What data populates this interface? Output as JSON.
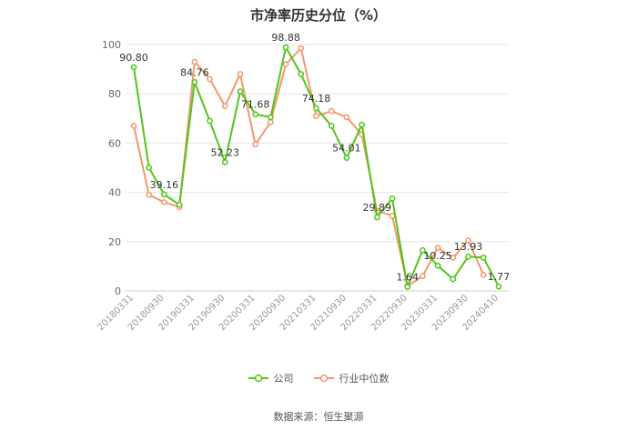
{
  "chart_data": {
    "type": "line",
    "title": "市净率历史分位（%）",
    "xlabel": "",
    "ylabel": "",
    "ylim": [
      0,
      100
    ],
    "yticks": [
      0,
      20,
      40,
      60,
      80,
      100
    ],
    "grid": true,
    "legend_position": "bottom",
    "x": [
      "20180331",
      "20180630",
      "20180930",
      "20181231",
      "20190331",
      "20190630",
      "20190930",
      "20191231",
      "20200331",
      "20200630",
      "20200930",
      "20201231",
      "20210331",
      "20210630",
      "20210930",
      "20211231",
      "20220331",
      "20220630",
      "20220930",
      "20221231",
      "20230331",
      "20230630",
      "20230930",
      "20231231",
      "20240410"
    ],
    "xtick_labels": [
      "20180331",
      "20180930",
      "20190331",
      "20190930",
      "20200331",
      "20200930",
      "20210331",
      "20210930",
      "20220331",
      "20220930",
      "20230331",
      "20230930",
      "20240410"
    ],
    "series": [
      {
        "name": "公司",
        "color": "#52c41a",
        "values": [
          90.8,
          50,
          39.16,
          35,
          84.76,
          69,
          52.23,
          81,
          71.68,
          70.5,
          98.88,
          88,
          74.18,
          67,
          54.01,
          67.5,
          29.89,
          37.5,
          1.64,
          16.5,
          10.25,
          4.8,
          13.93,
          13.5,
          1.77
        ],
        "labels": [
          "90.80",
          null,
          "39.16",
          null,
          "84.76",
          null,
          "52.23",
          null,
          "71.68",
          null,
          "98.88",
          null,
          "74.18",
          null,
          "54.01",
          null,
          "29.89",
          null,
          "1.64",
          null,
          "10.25",
          null,
          "13.93",
          null,
          "1.77"
        ]
      },
      {
        "name": "行业中位数",
        "color": "#f4976c",
        "values": [
          67,
          39,
          36,
          34,
          93,
          86,
          75,
          88,
          59.5,
          68.5,
          92,
          98.5,
          71,
          73,
          70.5,
          63.5,
          32.5,
          30.5,
          2,
          6,
          17.5,
          13.5,
          20.5,
          6.5,
          null
        ]
      }
    ]
  },
  "source": "数据来源：恒生聚源"
}
